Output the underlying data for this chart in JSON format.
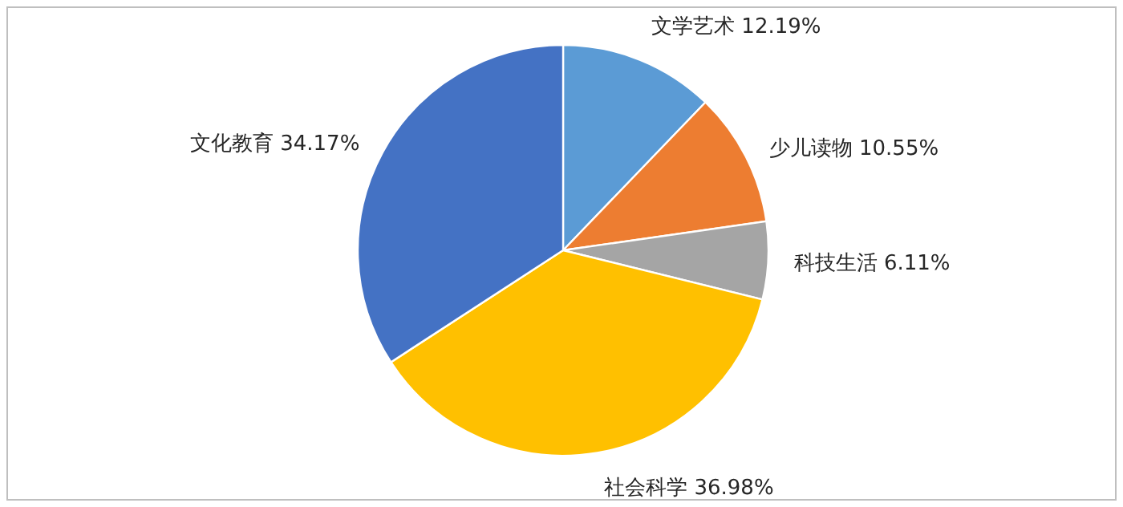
{
  "chart_data": {
    "type": "pie",
    "categories": [
      "文学艺术",
      "少儿读物",
      "科技生活",
      "社会科学",
      "文化教育"
    ],
    "values": [
      12.19,
      10.55,
      6.11,
      36.98,
      34.17
    ],
    "value_labels": [
      "12.19%",
      "10.55%",
      "6.11%",
      "36.98%",
      "34.17%"
    ],
    "colors": [
      "#5b9bd5",
      "#ed7d31",
      "#a5a5a5",
      "#ffc000",
      "#4472c4"
    ],
    "legend": false
  }
}
